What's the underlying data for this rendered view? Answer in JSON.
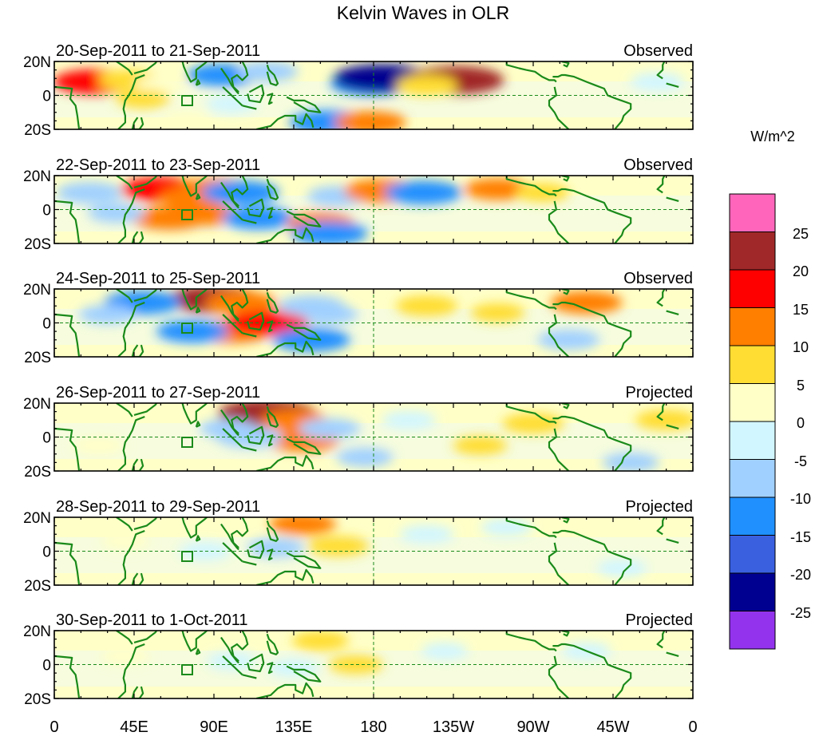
{
  "title": "Kelvin Waves in OLR",
  "units_label": "W/m^2",
  "y_tick_labels": [
    "20N",
    "0",
    "20S"
  ],
  "x_tick_labels": [
    "0",
    "45E",
    "90E",
    "135E",
    "180",
    "135W",
    "90W",
    "45W",
    "0"
  ],
  "panels": [
    {
      "date_range": "20-Sep-2011 to 21-Sep-2011",
      "status": "Observed",
      "anomalies": [
        {
          "lon": 22,
          "lat": 8,
          "value": 15
        },
        {
          "lon": 42,
          "lat": 9,
          "value": 8
        },
        {
          "lon": 60,
          "lat": 6,
          "value": 4
        },
        {
          "lon": 95,
          "lat": 12,
          "value": -12
        },
        {
          "lon": 120,
          "lat": 14,
          "value": -8
        },
        {
          "lon": 178,
          "lat": 7,
          "value": -15
        },
        {
          "lon": 185,
          "lat": 10,
          "value": -22
        },
        {
          "lon": 226,
          "lat": 9,
          "value": 22
        },
        {
          "lon": 210,
          "lat": 6,
          "value": 8
        },
        {
          "lon": 155,
          "lat": -16,
          "value": -15
        },
        {
          "lon": 178,
          "lat": -16,
          "value": 12
        },
        {
          "lon": 100,
          "lat": -5,
          "value": -4
        },
        {
          "lon": 340,
          "lat": 8,
          "value": -5
        },
        {
          "lon": 50,
          "lat": -2,
          "value": 5
        },
        {
          "lon": 75,
          "lat": -14,
          "value": 3
        }
      ]
    },
    {
      "date_range": "22-Sep-2011 to 23-Sep-2011",
      "status": "Observed",
      "anomalies": [
        {
          "lon": 60,
          "lat": 12,
          "value": 15
        },
        {
          "lon": 78,
          "lat": 7,
          "value": 10
        },
        {
          "lon": 90,
          "lat": 12,
          "value": 12
        },
        {
          "lon": 65,
          "lat": -5,
          "value": 14
        },
        {
          "lon": 85,
          "lat": -3,
          "value": 10
        },
        {
          "lon": 105,
          "lat": 10,
          "value": -14
        },
        {
          "lon": 115,
          "lat": -5,
          "value": -12
        },
        {
          "lon": 150,
          "lat": -8,
          "value": 10
        },
        {
          "lon": 155,
          "lat": -14,
          "value": -14
        },
        {
          "lon": 160,
          "lat": 8,
          "value": -8
        },
        {
          "lon": 185,
          "lat": 11,
          "value": 14
        },
        {
          "lon": 208,
          "lat": 10,
          "value": -14
        },
        {
          "lon": 250,
          "lat": 12,
          "value": 10
        },
        {
          "lon": 275,
          "lat": 10,
          "value": 5
        },
        {
          "lon": 20,
          "lat": 10,
          "value": -10
        },
        {
          "lon": 35,
          "lat": -2,
          "value": -6
        }
      ]
    },
    {
      "date_range": "24-Sep-2011 to 25-Sep-2011",
      "status": "Observed",
      "anomalies": [
        {
          "lon": 90,
          "lat": 14,
          "value": 20
        },
        {
          "lon": 105,
          "lat": 12,
          "value": 12
        },
        {
          "lon": 100,
          "lat": -5,
          "value": 14
        },
        {
          "lon": 120,
          "lat": 0,
          "value": 16
        },
        {
          "lon": 78,
          "lat": -5,
          "value": -12
        },
        {
          "lon": 50,
          "lat": 12,
          "value": -14
        },
        {
          "lon": 145,
          "lat": -10,
          "value": -14
        },
        {
          "lon": 145,
          "lat": 10,
          "value": -10
        },
        {
          "lon": 155,
          "lat": 5,
          "value": -6
        },
        {
          "lon": 210,
          "lat": 10,
          "value": 8
        },
        {
          "lon": 250,
          "lat": 6,
          "value": 5
        },
        {
          "lon": 300,
          "lat": 12,
          "value": 12
        },
        {
          "lon": 290,
          "lat": -10,
          "value": -8
        },
        {
          "lon": 30,
          "lat": 5,
          "value": -6
        }
      ]
    },
    {
      "date_range": "26-Sep-2011 to 27-Sep-2011",
      "status": "Projected",
      "anomalies": [
        {
          "lon": 120,
          "lat": 14,
          "value": 22
        },
        {
          "lon": 135,
          "lat": 10,
          "value": 10
        },
        {
          "lon": 140,
          "lat": -2,
          "value": 12
        },
        {
          "lon": 110,
          "lat": 0,
          "value": -10
        },
        {
          "lon": 98,
          "lat": 5,
          "value": -6
        },
        {
          "lon": 155,
          "lat": 5,
          "value": -8
        },
        {
          "lon": 175,
          "lat": -12,
          "value": -6
        },
        {
          "lon": 200,
          "lat": 10,
          "value": -5
        },
        {
          "lon": 240,
          "lat": -5,
          "value": 5
        },
        {
          "lon": 270,
          "lat": 8,
          "value": 8
        },
        {
          "lon": 345,
          "lat": 10,
          "value": 8
        },
        {
          "lon": 325,
          "lat": -15,
          "value": -6
        },
        {
          "lon": 25,
          "lat": -5,
          "value": 4
        }
      ]
    },
    {
      "date_range": "28-Sep-2011 to 29-Sep-2011",
      "status": "Projected",
      "anomalies": [
        {
          "lon": 140,
          "lat": 16,
          "value": 10
        },
        {
          "lon": 160,
          "lat": 3,
          "value": 8
        },
        {
          "lon": 125,
          "lat": 2,
          "value": -6
        },
        {
          "lon": 85,
          "lat": 0,
          "value": -4
        },
        {
          "lon": 210,
          "lat": 10,
          "value": -5
        },
        {
          "lon": 255,
          "lat": 14,
          "value": -4
        },
        {
          "lon": 40,
          "lat": 6,
          "value": 3
        },
        {
          "lon": 320,
          "lat": -10,
          "value": -3
        }
      ]
    },
    {
      "date_range": "30-Sep-2011 to 1-Oct-2011",
      "status": "Projected",
      "anomalies": [
        {
          "lon": 150,
          "lat": 14,
          "value": 6
        },
        {
          "lon": 170,
          "lat": 0,
          "value": 5
        },
        {
          "lon": 135,
          "lat": -2,
          "value": -4
        },
        {
          "lon": 100,
          "lat": 2,
          "value": -3
        },
        {
          "lon": 300,
          "lat": 8,
          "value": -3
        },
        {
          "lon": 40,
          "lat": 5,
          "value": 3
        },
        {
          "lon": 220,
          "lat": 8,
          "value": -2
        }
      ]
    }
  ],
  "colorbar": {
    "tick_labels": [
      "25",
      "20",
      "15",
      "10",
      "5",
      "0",
      "-5",
      "-10",
      "-15",
      "-20",
      "-25"
    ],
    "colors": [
      "#ff66bb",
      "#a02828",
      "#ff0000",
      "#ff7f00",
      "#ffdd33",
      "#ffffc8",
      "#d2f6ff",
      "#a0d0ff",
      "#2090ff",
      "#3a60e0",
      "#000090",
      "#9333ee"
    ]
  },
  "chart_data": {
    "type": "heatmap",
    "title": "Kelvin Waves in OLR",
    "variable": "OLR anomaly",
    "units": "W/m^2",
    "x_range": [
      0,
      360
    ],
    "y_range": [
      -20,
      20
    ],
    "levels": [
      -25,
      -20,
      -15,
      -10,
      -5,
      0,
      5,
      10,
      15,
      20,
      25
    ],
    "xlabel": "",
    "ylabel": ""
  }
}
